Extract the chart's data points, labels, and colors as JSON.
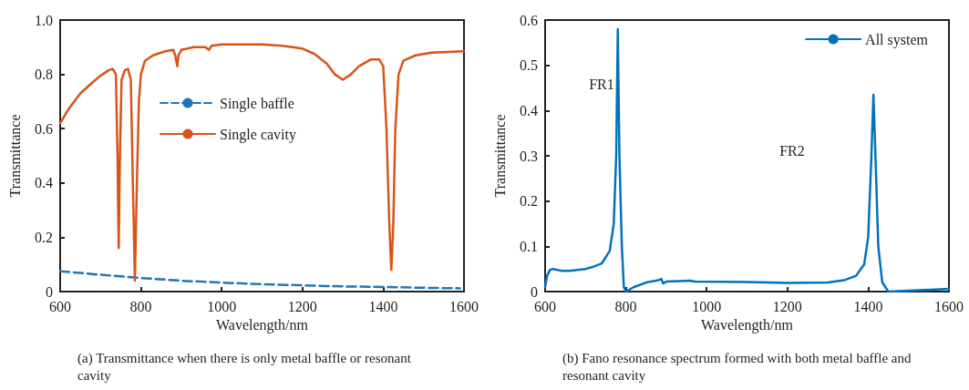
{
  "chart_data": [
    {
      "type": "line",
      "title": "(a) Transmittance when there is only metal baffle or resonant cavity",
      "xlabel": "Wavelength/nm",
      "ylabel": "Transmittance",
      "xlim": [
        600,
        1600
      ],
      "xticks": [
        600,
        800,
        1000,
        1200,
        1400,
        1600
      ],
      "ylim": [
        0,
        1
      ],
      "yticks": [
        0,
        0.2,
        0.4,
        0.6,
        0.8,
        {
          "value": 1,
          "label": "1.0"
        }
      ],
      "grid": false,
      "legend": "center",
      "marker": "none",
      "series": [
        {
          "name": "Single baffle",
          "color": "#1f77b4",
          "line_style": "dashed",
          "x": [
            600,
            700,
            800,
            900,
            1000,
            1100,
            1200,
            1300,
            1400,
            1500,
            1590
          ],
          "values": [
            0.075,
            0.062,
            0.05,
            0.04,
            0.033,
            0.027,
            0.023,
            0.019,
            0.017,
            0.014,
            0.012
          ]
        },
        {
          "name": "Single cavity",
          "color": "#d95319",
          "line_style": "solid",
          "x": [
            600,
            620,
            650,
            680,
            700,
            720,
            730,
            738,
            742,
            745,
            748,
            752,
            760,
            768,
            775,
            780,
            785,
            790,
            795,
            800,
            810,
            830,
            860,
            880,
            885,
            890,
            893,
            900,
            930,
            960,
            968,
            975,
            1000,
            1100,
            1150,
            1200,
            1230,
            1260,
            1280,
            1300,
            1320,
            1340,
            1370,
            1390,
            1400,
            1408,
            1415,
            1420,
            1425,
            1430,
            1438,
            1450,
            1480,
            1520,
            1600
          ],
          "values": [
            0.62,
            0.67,
            0.73,
            0.77,
            0.795,
            0.815,
            0.82,
            0.8,
            0.5,
            0.16,
            0.5,
            0.78,
            0.815,
            0.82,
            0.78,
            0.4,
            0.04,
            0.4,
            0.7,
            0.8,
            0.85,
            0.87,
            0.885,
            0.89,
            0.87,
            0.83,
            0.87,
            0.89,
            0.9,
            0.9,
            0.89,
            0.905,
            0.91,
            0.91,
            0.905,
            0.895,
            0.875,
            0.84,
            0.8,
            0.78,
            0.8,
            0.83,
            0.855,
            0.855,
            0.83,
            0.6,
            0.25,
            0.08,
            0.25,
            0.6,
            0.8,
            0.85,
            0.87,
            0.88,
            0.885
          ]
        }
      ]
    },
    {
      "type": "line",
      "title": "(b) Fano resonance spectrum formed with both metal baffle and resonant cavity",
      "xlabel": "Wavelength/nm",
      "ylabel": "Transmittance",
      "xlim": [
        600,
        1600
      ],
      "xticks": [
        600,
        800,
        1000,
        1200,
        1400,
        1600
      ],
      "ylim": [
        0,
        0.6
      ],
      "yticks": [
        0,
        0.1,
        0.2,
        0.3,
        0.4,
        0.5,
        0.6
      ],
      "grid": false,
      "legend": "top right",
      "marker": "none",
      "annotations": [
        "FR1",
        "FR2"
      ],
      "series": [
        {
          "name": "All system",
          "color": "#0072bd",
          "line_style": "solid",
          "x": [
            600,
            605,
            612,
            620,
            640,
            660,
            700,
            720,
            740,
            760,
            770,
            776,
            780,
            784,
            790,
            795,
            800,
            820,
            850,
            880,
            888,
            892,
            900,
            960,
            970,
            1100,
            1200,
            1300,
            1340,
            1370,
            1390,
            1400,
            1408,
            1413,
            1418,
            1425,
            1435,
            1450,
            1500,
            1600
          ],
          "values": [
            0.01,
            0.035,
            0.048,
            0.05,
            0.046,
            0.046,
            0.05,
            0.055,
            0.062,
            0.09,
            0.15,
            0.3,
            0.58,
            0.3,
            0.1,
            0.01,
            0.0,
            0.01,
            0.02,
            0.025,
            0.028,
            0.018,
            0.022,
            0.024,
            0.022,
            0.021,
            0.019,
            0.02,
            0.025,
            0.035,
            0.06,
            0.12,
            0.3,
            0.435,
            0.3,
            0.1,
            0.02,
            0.0,
            0.002,
            0.006
          ]
        }
      ]
    }
  ]
}
